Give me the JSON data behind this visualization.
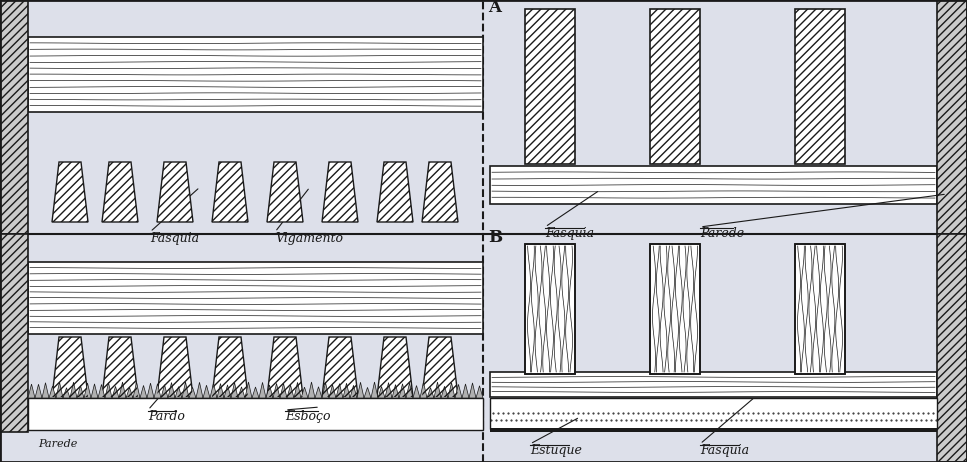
{
  "bg_color": "#dde0ea",
  "line_color": "#1a1a1a",
  "fig_width": 9.67,
  "fig_height": 4.62,
  "dpi": 100,
  "labels": {
    "fasquia": "Fasquia",
    "vigamento": "Vigamento",
    "pardo": "Pardo",
    "esbozo": "Esboço",
    "parede": "Parede",
    "estuque": "Estuque",
    "label_A": "A",
    "label_B": "B"
  }
}
